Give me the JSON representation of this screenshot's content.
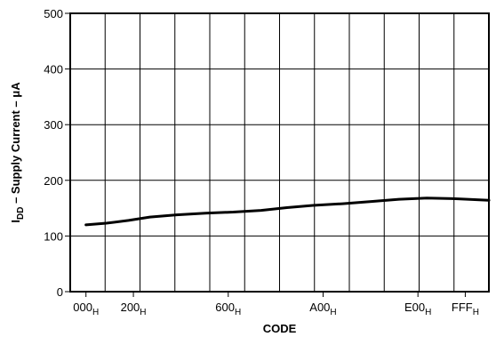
{
  "chart_data": {
    "type": "line",
    "xlabel": "CODE",
    "ylabel": {
      "prefix": "I",
      "subscript": "DD",
      "text": " – Supply Current – μA"
    },
    "x_ticks": [
      {
        "value": 0,
        "label": "000",
        "sub": "H"
      },
      {
        "value": 512,
        "label": "200",
        "sub": "H"
      },
      {
        "value": 1536,
        "label": "600",
        "sub": "H"
      },
      {
        "value": 2560,
        "label": "A00",
        "sub": "H"
      },
      {
        "value": 3584,
        "label": "E00",
        "sub": "H"
      },
      {
        "value": 4095,
        "label": "FFF",
        "sub": "H"
      }
    ],
    "xlim": [
      -170,
      4350
    ],
    "ylim": [
      0,
      500
    ],
    "y_ticks": [
      "0",
      "100",
      "200",
      "300",
      "400",
      "500"
    ],
    "grid": true,
    "series": [
      {
        "x": [
          0,
          220,
          460,
          690,
          980,
          1290,
          1590,
          1890,
          2170,
          2450,
          2770,
          3080,
          3380,
          3680,
          3990,
          4350
        ],
        "y": [
          120,
          123,
          128,
          134,
          138,
          141,
          143,
          146,
          151,
          155,
          158,
          162,
          166,
          168,
          167,
          164
        ],
        "color": "#000000"
      }
    ]
  }
}
